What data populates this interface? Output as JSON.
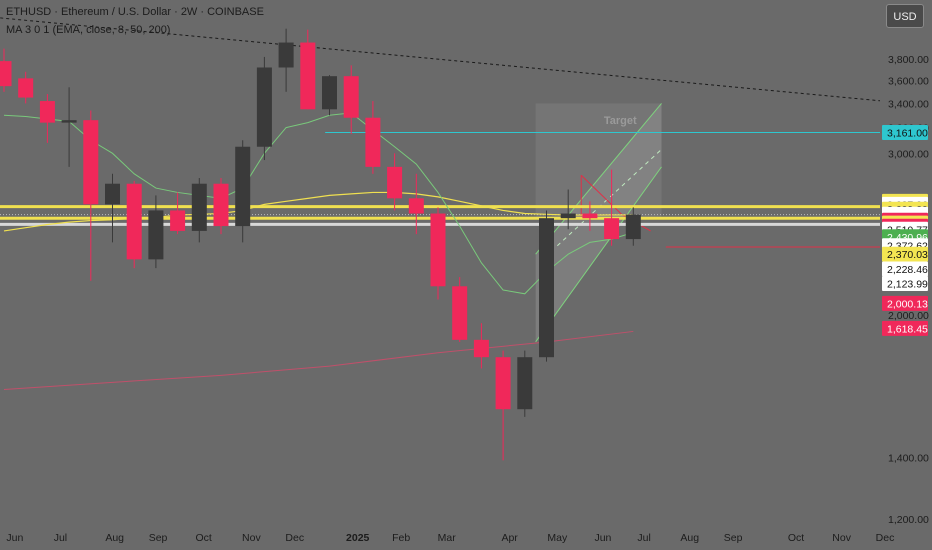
{
  "header": {
    "title": "ETHUSD · Ethereum / U.S. Dollar · 2W · COINBASE",
    "ma_label": "MA 3 0 1  (EMA, close, 8, 50, 200)",
    "currency_button": "USD"
  },
  "chart_data": {
    "type": "candlestick",
    "title": "ETHUSD · Ethereum / U.S. Dollar · 2W · COINBASE",
    "ylim": [
      1150,
      4500
    ],
    "y_ticks": [
      1200,
      1400,
      2000,
      3000,
      3200,
      3400,
      3600,
      3800
    ],
    "y_tick_labels": [
      "1,200.00",
      "1,400.00",
      "2,000.00",
      "3,000.00",
      "3,200.00",
      "3,400.00",
      "3,600.00",
      "3,800.00"
    ],
    "x_ticks": [
      {
        "label": "Jun",
        "t": 0.5
      },
      {
        "label": "Jul",
        "t": 2.6
      },
      {
        "label": "Aug",
        "t": 5.1
      },
      {
        "label": "Sep",
        "t": 7.1
      },
      {
        "label": "Oct",
        "t": 9.2
      },
      {
        "label": "Nov",
        "t": 11.4
      },
      {
        "label": "Dec",
        "t": 13.4
      },
      {
        "label": "2025",
        "t": 16.3,
        "bold": true
      },
      {
        "label": "Feb",
        "t": 18.3
      },
      {
        "label": "Mar",
        "t": 20.4
      },
      {
        "label": "Apr",
        "t": 23.3
      },
      {
        "label": "May",
        "t": 25.5
      },
      {
        "label": "Jun",
        "t": 27.6
      },
      {
        "label": "Jul",
        "t": 29.5
      },
      {
        "label": "Aug",
        "t": 31.6
      },
      {
        "label": "Sep",
        "t": 33.6
      },
      {
        "label": "Oct",
        "t": 36.5
      },
      {
        "label": "Nov",
        "t": 38.6
      },
      {
        "label": "Dec",
        "t": 40.6
      }
    ],
    "candles": [
      {
        "t": 0,
        "o": 3780,
        "h": 3900,
        "l": 3500,
        "c": 3550
      },
      {
        "t": 1,
        "o": 3620,
        "h": 3680,
        "l": 3400,
        "c": 3450
      },
      {
        "t": 2,
        "o": 3420,
        "h": 3480,
        "l": 3080,
        "c": 3240
      },
      {
        "t": 3,
        "o": 3240,
        "h": 3540,
        "l": 2900,
        "c": 3260
      },
      {
        "t": 4,
        "o": 3260,
        "h": 3340,
        "l": 2180,
        "c": 2640
      },
      {
        "t": 5,
        "o": 2640,
        "h": 2850,
        "l": 2400,
        "c": 2780
      },
      {
        "t": 6,
        "o": 2780,
        "h": 2800,
        "l": 2250,
        "c": 2300
      },
      {
        "t": 7,
        "o": 2300,
        "h": 2700,
        "l": 2250,
        "c": 2600
      },
      {
        "t": 8,
        "o": 2600,
        "h": 2720,
        "l": 2450,
        "c": 2470
      },
      {
        "t": 9,
        "o": 2470,
        "h": 2820,
        "l": 2400,
        "c": 2780
      },
      {
        "t": 10,
        "o": 2780,
        "h": 2820,
        "l": 2450,
        "c": 2500
      },
      {
        "t": 11,
        "o": 2500,
        "h": 3100,
        "l": 2400,
        "c": 3050
      },
      {
        "t": 12,
        "o": 3050,
        "h": 3820,
        "l": 2950,
        "c": 3720
      },
      {
        "t": 13,
        "o": 3720,
        "h": 4100,
        "l": 3500,
        "c": 3960
      },
      {
        "t": 14,
        "o": 3960,
        "h": 4090,
        "l": 3350,
        "c": 3350
      },
      {
        "t": 15,
        "o": 3350,
        "h": 3650,
        "l": 3300,
        "c": 3640
      },
      {
        "t": 16,
        "o": 3640,
        "h": 3740,
        "l": 3150,
        "c": 3280
      },
      {
        "t": 17,
        "o": 3280,
        "h": 3420,
        "l": 2850,
        "c": 2900
      },
      {
        "t": 18,
        "o": 2900,
        "h": 3000,
        "l": 2600,
        "c": 2680
      },
      {
        "t": 19,
        "o": 2680,
        "h": 2850,
        "l": 2450,
        "c": 2580
      },
      {
        "t": 20,
        "o": 2580,
        "h": 2620,
        "l": 2080,
        "c": 2150
      },
      {
        "t": 21,
        "o": 2150,
        "h": 2200,
        "l": 1870,
        "c": 1880
      },
      {
        "t": 22,
        "o": 1880,
        "h": 1960,
        "l": 1750,
        "c": 1800
      },
      {
        "t": 23,
        "o": 1800,
        "h": 1830,
        "l": 1390,
        "c": 1580
      },
      {
        "t": 24,
        "o": 1580,
        "h": 1830,
        "l": 1550,
        "c": 1800
      },
      {
        "t": 25,
        "o": 1800,
        "h": 2600,
        "l": 1780,
        "c": 2550
      },
      {
        "t": 26,
        "o": 2550,
        "h": 2740,
        "l": 2480,
        "c": 2580
      },
      {
        "t": 27,
        "o": 2580,
        "h": 2660,
        "l": 2470,
        "c": 2550
      },
      {
        "t": 28,
        "o": 2550,
        "h": 2880,
        "l": 2380,
        "c": 2420
      },
      {
        "t": 29,
        "o": 2420,
        "h": 2620,
        "l": 2380,
        "c": 2573
      }
    ],
    "ema_8": [
      [
        0,
        3300
      ],
      [
        1,
        3290
      ],
      [
        2,
        3270
      ],
      [
        3,
        3250
      ],
      [
        4,
        3100
      ],
      [
        5,
        3000
      ],
      [
        6,
        2850
      ],
      [
        7,
        2750
      ],
      [
        8,
        2720
      ],
      [
        9,
        2700
      ],
      [
        10,
        2680
      ],
      [
        11,
        2750
      ],
      [
        12,
        3000
      ],
      [
        13,
        3200
      ],
      [
        14,
        3240
      ],
      [
        15,
        3300
      ],
      [
        16,
        3320
      ],
      [
        17,
        3180
      ],
      [
        18,
        3050
      ],
      [
        19,
        2920
      ],
      [
        20,
        2720
      ],
      [
        21,
        2500
      ],
      [
        22,
        2280
      ],
      [
        23,
        2130
      ],
      [
        24,
        2110
      ],
      [
        25,
        2230
      ],
      [
        26,
        2330
      ],
      [
        27,
        2400
      ],
      [
        28,
        2420
      ],
      [
        29,
        2460
      ]
    ],
    "ema_50": [
      [
        0,
        2470
      ],
      [
        1,
        2490
      ],
      [
        2,
        2510
      ],
      [
        3,
        2525
      ],
      [
        4,
        2535
      ],
      [
        5,
        2540
      ],
      [
        6,
        2550
      ],
      [
        7,
        2555
      ],
      [
        8,
        2570
      ],
      [
        9,
        2575
      ],
      [
        10,
        2580
      ],
      [
        11,
        2600
      ],
      [
        12,
        2640
      ],
      [
        13,
        2660
      ],
      [
        14,
        2680
      ],
      [
        15,
        2700
      ],
      [
        16,
        2710
      ],
      [
        17,
        2720
      ],
      [
        18,
        2720
      ],
      [
        19,
        2710
      ],
      [
        20,
        2690
      ],
      [
        21,
        2660
      ],
      [
        22,
        2630
      ],
      [
        23,
        2600
      ],
      [
        24,
        2580
      ],
      [
        25,
        2575
      ],
      [
        26,
        2570
      ],
      [
        27,
        2570
      ],
      [
        28,
        2571
      ],
      [
        29,
        2571
      ]
    ],
    "ema_200": [
      [
        0,
        1660
      ],
      [
        5,
        1690
      ],
      [
        10,
        1720
      ],
      [
        15,
        1760
      ],
      [
        20,
        1820
      ],
      [
        25,
        1870
      ],
      [
        29,
        1920
      ]
    ],
    "trendline": {
      "points": [
        [
          -1,
          4230
        ],
        [
          40.5,
          3420
        ]
      ],
      "style": "dashed"
    },
    "channel": {
      "upper": [
        [
          24.5,
          2330
        ],
        [
          30.3,
          3400
        ]
      ],
      "lower": [
        [
          24.5,
          1870
        ],
        [
          30.3,
          2900
        ]
      ],
      "mid": [
        [
          25.5,
          2380
        ],
        [
          30.3,
          3030
        ]
      ],
      "target_label": "Target",
      "target_pos": [
        28.4,
        3230
      ]
    },
    "horizontal_levels": [
      {
        "price": 3161,
        "color": "#2ec7cf",
        "width": 1,
        "from": 14.8
      },
      {
        "price": 2625,
        "color": "#f0e050",
        "width": 3
      },
      {
        "price": 2572.92,
        "color": "#bdbdbd",
        "width": 1,
        "dotted": true
      },
      {
        "price": 2549.41,
        "color": "#f0e050",
        "width": 3
      },
      {
        "price": 2510.77,
        "color": "#d8d8d8",
        "width": 3
      },
      {
        "price": 2372.62,
        "color": "#e03048",
        "width": 1,
        "from": 30.5
      }
    ],
    "price_labels": [
      {
        "text": "3,161.00",
        "price": 3161,
        "bg": "#2ec7cf",
        "fg": "#111111"
      },
      {
        "text": "2,637.96",
        "price": 2660,
        "bg": "#f3e552",
        "fg": "#111111"
      },
      {
        "text": "2,637.96",
        "price": 2640,
        "bg": "#ffffff",
        "fg": "#111111"
      },
      {
        "text": "2,609.00",
        "price": 2608,
        "bg": "#f3e552",
        "fg": "#111111"
      },
      {
        "text": "2,572.92",
        "price": 2575,
        "bg": "#ffffff",
        "fg": "#111111"
      },
      {
        "text": "13d 18h",
        "price": 2556,
        "bg": "#ffffff",
        "fg": "#111111"
      },
      {
        "text": "2,570.84",
        "price": 2537,
        "bg": "#f0285a",
        "fg": "#ffffff"
      },
      {
        "text": "2,549.41",
        "price": 2519,
        "bg": "#f3e552",
        "fg": "#111111"
      },
      {
        "text": "2,529.31",
        "price": 2499,
        "bg": "#f0285a",
        "fg": "#ffffff"
      },
      {
        "text": "2,510.77",
        "price": 2480,
        "bg": "#ffffff",
        "fg": "#111111"
      },
      {
        "text": "2,430.96",
        "price": 2434,
        "bg": "#4caf50",
        "fg": "#ffffff"
      },
      {
        "text": "2,372.62",
        "price": 2380,
        "bg": "#ffffff",
        "fg": "#111111"
      },
      {
        "text": "2,370.03",
        "price": 2330,
        "bg": "#f3e552",
        "fg": "#111111"
      },
      {
        "text": "2,228.46",
        "price": 2245,
        "bg": "#ffffff",
        "fg": "#111111"
      },
      {
        "text": "2,123.99",
        "price": 2165,
        "bg": "#ffffff",
        "fg": "#111111"
      },
      {
        "text": "2,000.13",
        "price": 2060,
        "bg": "#f0285a",
        "fg": "#ffffff"
      },
      {
        "text": "1,618.45",
        "price": 1935,
        "bg": "#f0285a",
        "fg": "#ffffff"
      }
    ],
    "colors": {
      "up": "#3a3a3a",
      "down": "#f0285a",
      "ema_8": "#79c97b",
      "ema_50": "#f0e050",
      "ema_200": "#c0506a",
      "channel": "#7ed37e",
      "background": "#6a6a6a"
    }
  }
}
